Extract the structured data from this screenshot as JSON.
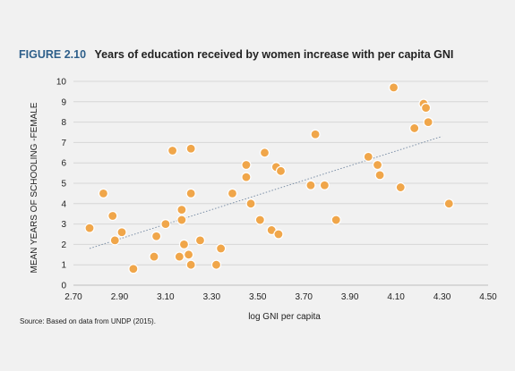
{
  "figure": {
    "label": "FIGURE 2.10",
    "title": "Years of education received by women increase with per capita GNI",
    "source": "Source: Based on data from UNDP (2015)."
  },
  "colors": {
    "marker_fill": "#f0a64a",
    "marker_stroke": "#ffffff",
    "trendline": "#7a8ea6",
    "grid": "#d6d6d6",
    "title_label": "#2e5f8a"
  },
  "chart_data": {
    "type": "scatter",
    "xlabel": "log GNI per capita",
    "ylabel": "MEAN YEARS OF SCHOOLING -FEMALE",
    "xlim": [
      2.7,
      4.5
    ],
    "ylim": [
      0,
      10
    ],
    "x_ticks": [
      "2.70",
      "2.90",
      "3.10",
      "3.30",
      "3.50",
      "3.70",
      "3.90",
      "4.10",
      "4.30",
      "4.50"
    ],
    "y_ticks": [
      "0",
      "1",
      "2",
      "3",
      "4",
      "5",
      "6",
      "7",
      "8",
      "9",
      "10"
    ],
    "grid": "horizontal",
    "trendline": {
      "type": "linear",
      "style": "dotted",
      "x": [
        2.77,
        4.3
      ],
      "y": [
        1.8,
        7.3
      ]
    },
    "points": [
      {
        "x": 2.77,
        "y": 2.8
      },
      {
        "x": 2.83,
        "y": 4.5
      },
      {
        "x": 2.87,
        "y": 3.4
      },
      {
        "x": 2.88,
        "y": 2.2
      },
      {
        "x": 2.91,
        "y": 2.6
      },
      {
        "x": 2.96,
        "y": 0.8
      },
      {
        "x": 3.05,
        "y": 1.4
      },
      {
        "x": 3.06,
        "y": 2.4
      },
      {
        "x": 3.1,
        "y": 3.0
      },
      {
        "x": 3.13,
        "y": 6.6
      },
      {
        "x": 3.16,
        "y": 1.4
      },
      {
        "x": 3.17,
        "y": 3.7
      },
      {
        "x": 3.17,
        "y": 3.2
      },
      {
        "x": 3.18,
        "y": 2.0
      },
      {
        "x": 3.2,
        "y": 1.5
      },
      {
        "x": 3.21,
        "y": 1.0
      },
      {
        "x": 3.21,
        "y": 4.5
      },
      {
        "x": 3.21,
        "y": 6.7
      },
      {
        "x": 3.25,
        "y": 2.2
      },
      {
        "x": 3.32,
        "y": 1.0
      },
      {
        "x": 3.34,
        "y": 1.8
      },
      {
        "x": 3.39,
        "y": 4.5
      },
      {
        "x": 3.45,
        "y": 5.9
      },
      {
        "x": 3.45,
        "y": 5.3
      },
      {
        "x": 3.47,
        "y": 4.0
      },
      {
        "x": 3.51,
        "y": 3.2
      },
      {
        "x": 3.53,
        "y": 6.5
      },
      {
        "x": 3.56,
        "y": 2.7
      },
      {
        "x": 3.58,
        "y": 5.8
      },
      {
        "x": 3.59,
        "y": 2.5
      },
      {
        "x": 3.6,
        "y": 5.6
      },
      {
        "x": 3.73,
        "y": 4.9
      },
      {
        "x": 3.75,
        "y": 7.4
      },
      {
        "x": 3.79,
        "y": 4.9
      },
      {
        "x": 3.84,
        "y": 3.2
      },
      {
        "x": 3.98,
        "y": 6.3
      },
      {
        "x": 4.02,
        "y": 5.9
      },
      {
        "x": 4.03,
        "y": 5.4
      },
      {
        "x": 4.09,
        "y": 9.7
      },
      {
        "x": 4.12,
        "y": 4.8
      },
      {
        "x": 4.18,
        "y": 7.7
      },
      {
        "x": 4.22,
        "y": 8.9
      },
      {
        "x": 4.23,
        "y": 8.7
      },
      {
        "x": 4.24,
        "y": 8.0
      },
      {
        "x": 4.33,
        "y": 4.0
      }
    ]
  }
}
